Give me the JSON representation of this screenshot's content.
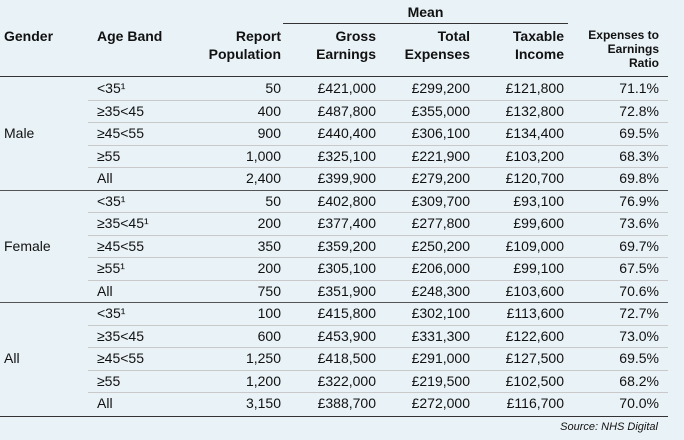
{
  "header": {
    "mean": "Mean",
    "gender": "Gender",
    "age_band": "Age Band",
    "report_population": [
      "Report",
      "Population"
    ],
    "gross_earnings": [
      "Gross",
      "Earnings"
    ],
    "total_expenses": [
      "Total",
      "Expenses"
    ],
    "taxable_income": [
      "Taxable",
      "Income"
    ],
    "ratio": [
      "Expenses to",
      "Earnings",
      "Ratio"
    ]
  },
  "groups": [
    {
      "gender": "Male",
      "rows": [
        {
          "age": "<35¹",
          "pop": "50",
          "gross": "£421,000",
          "expenses": "£299,200",
          "taxable": "£121,800",
          "ratio": "71.1%"
        },
        {
          "age": "≥35<45",
          "pop": "400",
          "gross": "£487,800",
          "expenses": "£355,000",
          "taxable": "£132,800",
          "ratio": "72.8%"
        },
        {
          "age": "≥45<55",
          "pop": "900",
          "gross": "£440,400",
          "expenses": "£306,100",
          "taxable": "£134,400",
          "ratio": "69.5%"
        },
        {
          "age": "≥55",
          "pop": "1,000",
          "gross": "£325,100",
          "expenses": "£221,900",
          "taxable": "£103,200",
          "ratio": "68.3%"
        },
        {
          "age": "All",
          "pop": "2,400",
          "gross": "£399,900",
          "expenses": "£279,200",
          "taxable": "£120,700",
          "ratio": "69.8%"
        }
      ]
    },
    {
      "gender": "Female",
      "rows": [
        {
          "age": "<35¹",
          "pop": "50",
          "gross": "£402,800",
          "expenses": "£309,700",
          "taxable": "£93,100",
          "ratio": "76.9%"
        },
        {
          "age": "≥35<45¹",
          "pop": "200",
          "gross": "£377,400",
          "expenses": "£277,800",
          "taxable": "£99,600",
          "ratio": "73.6%"
        },
        {
          "age": "≥45<55",
          "pop": "350",
          "gross": "£359,200",
          "expenses": "£250,200",
          "taxable": "£109,000",
          "ratio": "69.7%"
        },
        {
          "age": "≥55¹",
          "pop": "200",
          "gross": "£305,100",
          "expenses": "£206,000",
          "taxable": "£99,100",
          "ratio": "67.5%"
        },
        {
          "age": "All",
          "pop": "750",
          "gross": "£351,900",
          "expenses": "£248,300",
          "taxable": "£103,600",
          "ratio": "70.6%"
        }
      ]
    },
    {
      "gender": "All",
      "rows": [
        {
          "age": "<35¹",
          "pop": "100",
          "gross": "£415,800",
          "expenses": "£302,100",
          "taxable": "£113,600",
          "ratio": "72.7%"
        },
        {
          "age": "≥35<45",
          "pop": "600",
          "gross": "£453,900",
          "expenses": "£331,300",
          "taxable": "£122,600",
          "ratio": "73.0%"
        },
        {
          "age": "≥45<55",
          "pop": "1,250",
          "gross": "£418,500",
          "expenses": "£291,000",
          "taxable": "£127,500",
          "ratio": "69.5%"
        },
        {
          "age": "≥55",
          "pop": "1,200",
          "gross": "£322,000",
          "expenses": "£219,500",
          "taxable": "£102,500",
          "ratio": "68.2%"
        },
        {
          "age": "All",
          "pop": "3,150",
          "gross": "£388,700",
          "expenses": "£272,000",
          "taxable": "£116,700",
          "ratio": "70.0%"
        }
      ]
    }
  ],
  "source": "Source: NHS Digital"
}
